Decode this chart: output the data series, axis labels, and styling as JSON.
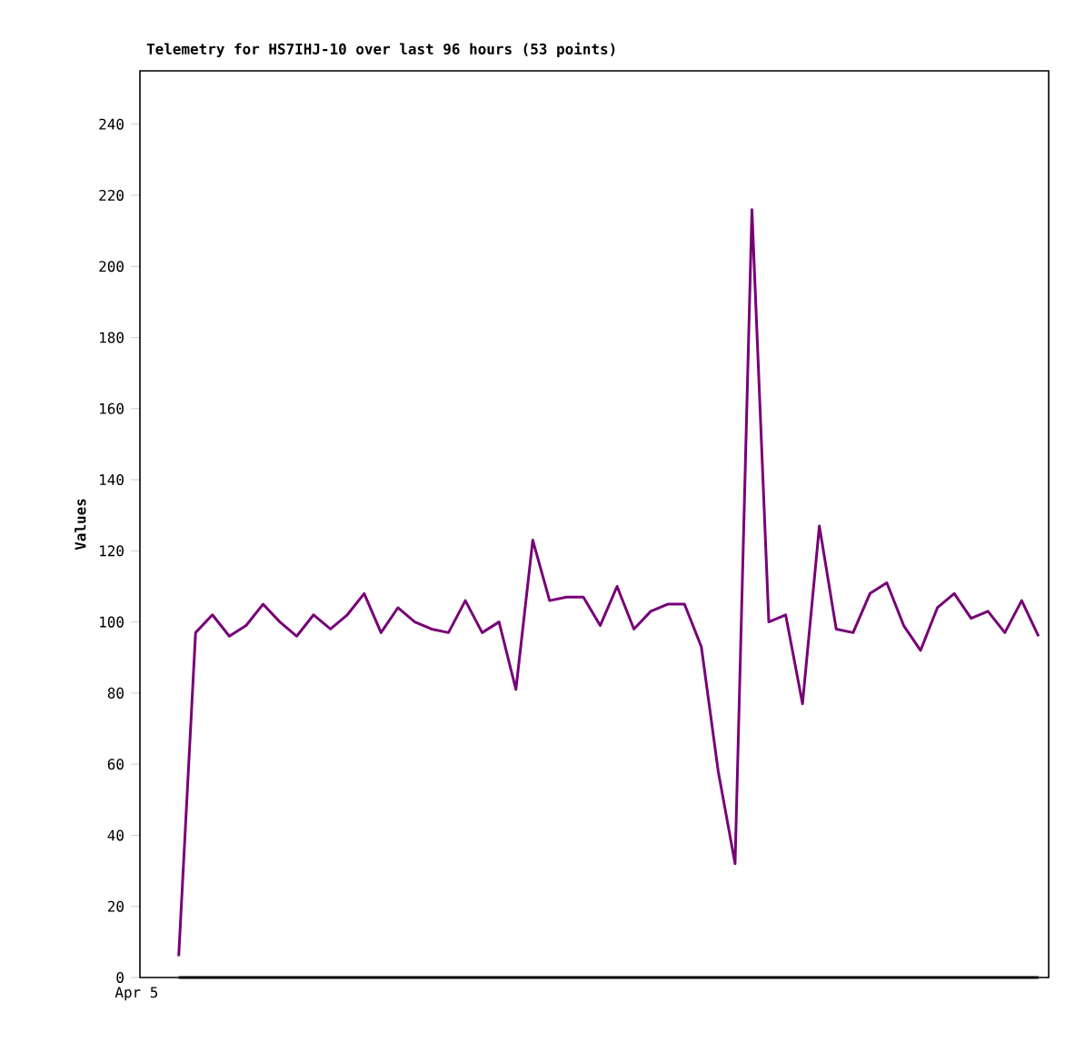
{
  "chart_data": {
    "type": "line",
    "title": "Telemetry for HS7IHJ-10 over last 96 hours (53 points)",
    "ylabel": "Values",
    "categories": [
      null,
      null,
      null,
      null,
      null,
      null,
      null,
      null,
      null,
      null,
      null,
      null,
      null,
      null,
      null,
      null,
      null,
      null,
      null,
      null,
      null,
      null,
      null,
      null,
      null,
      null,
      null,
      null,
      null,
      null,
      null,
      null,
      null,
      null,
      null,
      null,
      null,
      null,
      null,
      null,
      null,
      null,
      null,
      null,
      null,
      null,
      null,
      null,
      null,
      null,
      null,
      null
    ],
    "series": [
      {
        "color": "#770077",
        "values": [
          6,
          97,
          102,
          96,
          99,
          105,
          100,
          96,
          102,
          98,
          102,
          108,
          97,
          104,
          100,
          98,
          97,
          106,
          97,
          100,
          81,
          123,
          106,
          107,
          107,
          99,
          110,
          98,
          103,
          105,
          105,
          93,
          58,
          32,
          216,
          100,
          102,
          77,
          127,
          98,
          97,
          108,
          111,
          99,
          92,
          104,
          108,
          101,
          103,
          97,
          106,
          96
        ]
      },
      {
        "color": "#000000",
        "values": [
          0,
          0,
          0,
          0,
          0,
          0,
          0,
          0,
          0,
          0,
          0,
          0,
          0,
          0,
          0,
          0,
          0,
          0,
          0,
          0,
          0,
          0,
          0,
          0,
          0,
          0,
          0,
          0,
          0,
          0,
          0,
          0,
          0,
          0,
          0,
          0,
          0,
          0,
          0,
          0,
          0,
          0,
          0,
          0,
          0,
          0,
          0,
          0,
          0,
          0,
          0,
          0
        ]
      }
    ],
    "annotations": [
      "Apr 5"
    ],
    "ylim": [
      0,
      255
    ],
    "yticks": [
      0,
      20,
      40,
      60,
      80,
      100,
      120,
      140,
      160,
      180,
      200,
      220,
      240
    ],
    "grid": false,
    "marker": "none",
    "line_style": "solid"
  }
}
